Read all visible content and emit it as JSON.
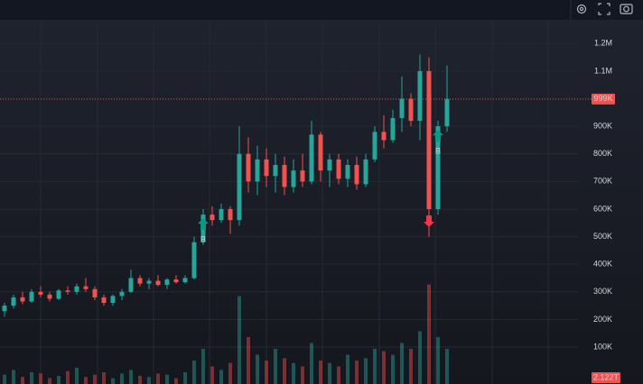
{
  "chart_data": {
    "type": "candlestick",
    "open": [
      230000,
      250000,
      280000,
      265000,
      300000,
      290000,
      275000,
      305000,
      300000,
      320000,
      310000,
      280000,
      260000,
      285000,
      300000,
      350000,
      330000,
      340000,
      325000,
      345000,
      335000,
      350000,
      480000,
      580000,
      560000,
      600000,
      560000,
      800000,
      700000,
      780000,
      720000,
      760000,
      680000,
      740000,
      700000,
      870000,
      740000,
      780000,
      710000,
      760000,
      690000,
      780000,
      880000,
      850000,
      930000,
      1000000,
      920000,
      1100000,
      600000,
      900000
    ],
    "high": [
      260000,
      290000,
      300000,
      310000,
      320000,
      300000,
      310000,
      320000,
      330000,
      350000,
      320000,
      290000,
      290000,
      310000,
      380000,
      360000,
      350000,
      360000,
      350000,
      360000,
      360000,
      500000,
      600000,
      610000,
      620000,
      610000,
      900000,
      860000,
      830000,
      820000,
      800000,
      790000,
      780000,
      800000,
      920000,
      880000,
      800000,
      800000,
      780000,
      790000,
      800000,
      900000,
      940000,
      960000,
      1080000,
      1020000,
      1160000,
      1150000,
      920000,
      1120000
    ],
    "low": [
      210000,
      240000,
      255000,
      260000,
      280000,
      265000,
      270000,
      290000,
      290000,
      300000,
      270000,
      250000,
      250000,
      270000,
      295000,
      320000,
      310000,
      320000,
      310000,
      330000,
      330000,
      345000,
      470000,
      540000,
      550000,
      510000,
      540000,
      660000,
      650000,
      680000,
      660000,
      650000,
      660000,
      680000,
      690000,
      700000,
      680000,
      690000,
      680000,
      670000,
      680000,
      770000,
      820000,
      840000,
      880000,
      900000,
      850000,
      500000,
      580000,
      880000
    ],
    "close": [
      250000,
      280000,
      265000,
      300000,
      290000,
      275000,
      305000,
      300000,
      320000,
      310000,
      280000,
      260000,
      285000,
      300000,
      350000,
      330000,
      340000,
      325000,
      345000,
      335000,
      350000,
      480000,
      580000,
      560000,
      600000,
      560000,
      800000,
      700000,
      780000,
      720000,
      760000,
      680000,
      740000,
      700000,
      870000,
      740000,
      780000,
      710000,
      760000,
      690000,
      780000,
      880000,
      850000,
      930000,
      1000000,
      920000,
      1100000,
      600000,
      900000,
      999000
    ],
    "volume": [
      8,
      12,
      6,
      10,
      9,
      5,
      7,
      11,
      14,
      6,
      8,
      10,
      5,
      9,
      12,
      7,
      6,
      9,
      8,
      5,
      10,
      20,
      30,
      15,
      12,
      18,
      75,
      40,
      25,
      20,
      30,
      22,
      18,
      15,
      35,
      20,
      18,
      15,
      25,
      20,
      22,
      30,
      28,
      25,
      35,
      30,
      45,
      85,
      40,
      30
    ],
    "up_color": "#26a69a",
    "down_color": "#ef5350",
    "ylim": [
      -34000,
      1286000
    ],
    "yticks": [
      {
        "value": 100000,
        "label": "100K"
      },
      {
        "value": 200000,
        "label": "200K"
      },
      {
        "value": 300000,
        "label": "300K"
      },
      {
        "value": 400000,
        "label": "400K"
      },
      {
        "value": 500000,
        "label": "500K"
      },
      {
        "value": 600000,
        "label": "600K"
      },
      {
        "value": 700000,
        "label": "700K"
      },
      {
        "value": 800000,
        "label": "800K"
      },
      {
        "value": 900000,
        "label": "900K"
      },
      {
        "value": 1100000,
        "label": "1.1M"
      },
      {
        "value": 1200000,
        "label": "1.2M"
      }
    ],
    "y2lim": [
      0,
      100
    ],
    "grid": true,
    "last_price": {
      "value": 999000,
      "label": "999K"
    },
    "last_volume_label": "2.122T",
    "markers": [
      {
        "index": 22,
        "side": "buy",
        "label": "B"
      },
      {
        "index": 47,
        "side": "sell"
      },
      {
        "index": 48,
        "side": "buy",
        "label": "B"
      }
    ]
  }
}
